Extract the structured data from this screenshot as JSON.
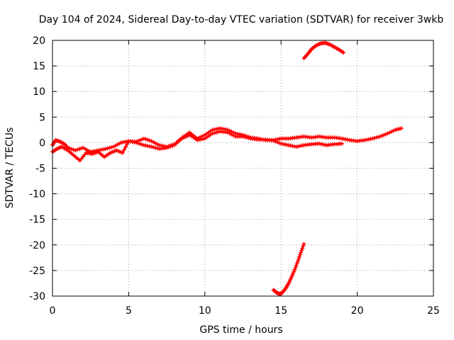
{
  "chart_data": {
    "type": "scatter",
    "title": "Day 104 of 2024, Sidereal Day-to-day VTEC variation (SDTVAR) for receiver 3wkb",
    "xlabel": "GPS time / hours",
    "ylabel": "SDTVAR / TECUs",
    "xlim": [
      0,
      25
    ],
    "ylim": [
      -30,
      20
    ],
    "xticks": [
      0,
      5,
      10,
      15,
      20,
      25
    ],
    "yticks": [
      -30,
      -25,
      -20,
      -15,
      -10,
      -5,
      0,
      5,
      10,
      15,
      20
    ],
    "xtick_labels": [
      "0",
      "5",
      "10",
      "15",
      "20",
      "25"
    ],
    "ytick_labels": [
      "-30",
      "-25",
      "-20",
      "-15",
      "-10",
      "-5",
      "0",
      "5",
      "10",
      "15",
      "20"
    ],
    "grid": true,
    "marker": "+",
    "color": "#ff0000",
    "series": [
      {
        "name": "main-band-a",
        "x": [
          0,
          0.2,
          0.5,
          0.8,
          1.0,
          1.5,
          2.0,
          2.5,
          3.0,
          3.5,
          4.0,
          4.5,
          5.0,
          5.5,
          6.0,
          6.5,
          7.0,
          7.5,
          8.0,
          8.5,
          9.0,
          9.5,
          10.0,
          10.5,
          11.0,
          11.5,
          12.0,
          12.5,
          13.0,
          13.5,
          14.0,
          14.5,
          15.0,
          15.5,
          16.0,
          16.5,
          17.0,
          17.5,
          18.0,
          18.5,
          19.0,
          19.5,
          20.0,
          20.5,
          21.0,
          21.5,
          22.0,
          22.5,
          22.9
        ],
        "y": [
          -0.5,
          0.5,
          0.2,
          -0.3,
          -1.0,
          -1.5,
          -1.0,
          -1.8,
          -1.5,
          -1.2,
          -0.8,
          0,
          0.3,
          0.2,
          0.8,
          0.3,
          -0.5,
          -0.8,
          -0.3,
          1.0,
          2.0,
          0.8,
          1.5,
          2.5,
          2.8,
          2.5,
          1.8,
          1.5,
          1.0,
          0.8,
          0.5,
          0.5,
          0.8,
          0.8,
          1.0,
          1.2,
          1.0,
          1.2,
          1.0,
          1.0,
          0.8,
          0.5,
          0.3,
          0.5,
          0.8,
          1.2,
          1.8,
          2.5,
          2.8
        ]
      },
      {
        "name": "main-band-b",
        "x": [
          0,
          0.3,
          0.6,
          1.0,
          1.4,
          1.8,
          2.2,
          2.6,
          3.0,
          3.4,
          3.8,
          4.2,
          4.6,
          5.0,
          5.5,
          6.0,
          6.5,
          7.0,
          7.5,
          8.0,
          8.5,
          9.0,
          9.5,
          10.0,
          10.5,
          11.0,
          11.5,
          12.0,
          12.5,
          13.0,
          13.5,
          14.0,
          14.5,
          15.0,
          15.5,
          16.0,
          16.5,
          17.0,
          17.5,
          18.0,
          18.5,
          19.0
        ],
        "y": [
          -1.8,
          -1.2,
          -0.8,
          -1.5,
          -2.5,
          -3.5,
          -2.0,
          -2.2,
          -1.8,
          -2.8,
          -2.0,
          -1.5,
          -2.0,
          0.3,
          0,
          -0.5,
          -0.8,
          -1.2,
          -1.0,
          -0.5,
          0.8,
          1.5,
          0.5,
          0.8,
          1.8,
          2.2,
          2.0,
          1.2,
          1.2,
          0.8,
          0.6,
          0.6,
          0.4,
          -0.2,
          -0.5,
          -0.8,
          -0.5,
          -0.3,
          -0.2,
          -0.5,
          -0.3,
          -0.2
        ]
      },
      {
        "name": "upper-arc",
        "x": [
          16.5,
          16.8,
          17.0,
          17.3,
          17.6,
          17.9,
          18.2,
          18.5,
          18.8,
          19.1
        ],
        "y": [
          16.5,
          17.5,
          18.3,
          19.0,
          19.4,
          19.5,
          19.2,
          18.7,
          18.2,
          17.6
        ]
      },
      {
        "name": "lower-arc",
        "x": [
          14.5,
          14.7,
          14.9,
          15.1,
          15.3,
          15.5,
          15.7,
          15.9,
          16.1,
          16.3,
          16.5
        ],
        "y": [
          -28.8,
          -29.3,
          -29.6,
          -29.3,
          -28.5,
          -27.5,
          -26.2,
          -24.8,
          -23.2,
          -21.5,
          -19.8
        ]
      }
    ]
  }
}
